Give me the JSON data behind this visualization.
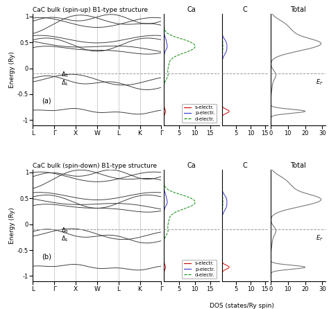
{
  "title_up": "CaC bulk (spin-up) B1-type structure",
  "title_down": "CaC bulk (spin-down) B1-type structure",
  "label_a": "(a)",
  "label_b": "(b)",
  "ylabel": "Energy (Ry)",
  "xlabel_dos": "DOS (states/Ry spin)",
  "kpoints": [
    "L",
    "Γ",
    "X",
    "W",
    "L",
    "K",
    "Γ"
  ],
  "ylim": [
    -1.1,
    1.05
  ],
  "Ca_xlim": [
    0,
    18
  ],
  "C_xlim": [
    0,
    16
  ],
  "Total_xlim": [
    0,
    32
  ],
  "Ca_xticks": [
    5,
    10,
    15
  ],
  "C_xticks": [
    5,
    10,
    15
  ],
  "Total_xticks": [
    0,
    10,
    20,
    30
  ],
  "fermi_energy": -0.1,
  "band_color": "#333333",
  "dos_color": "#777777",
  "s_color": "#cc0000",
  "p_color": "#3333cc",
  "d_color": "#008800",
  "background": "white",
  "grid_color": "#bbbbbb",
  "yticks": [
    -1.0,
    -0.5,
    0.0,
    0.5,
    1.0
  ]
}
